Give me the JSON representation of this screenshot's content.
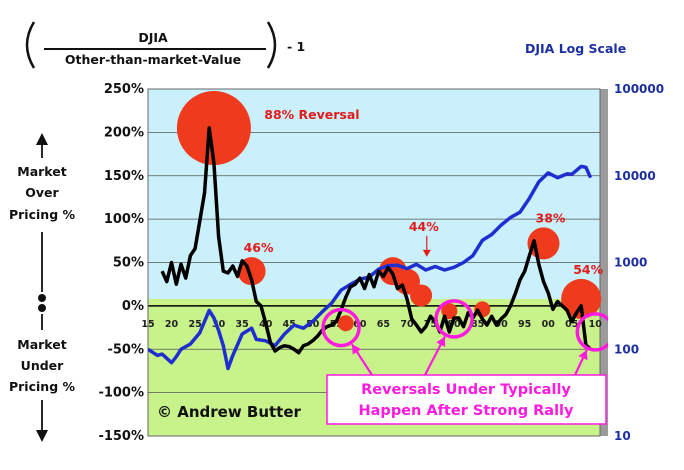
{
  "header": {
    "numerator": "DJIA",
    "denominator": "Other-than-market-Value",
    "suffix": "- 1",
    "right_title": "DJIA Log Scale"
  },
  "side_labels": {
    "over": [
      "Market",
      "Over",
      "Pricing %"
    ],
    "under": [
      "Market",
      "Under",
      "Pricing %"
    ]
  },
  "copyright": "© Andrew Butter",
  "callout": [
    "Reversals Under Typically",
    "Happen After Strong Rally"
  ],
  "colors": {
    "bg_top": "#c9f0fb",
    "bg_bottom": "#c8f28a",
    "ratio_line": "#000000",
    "djia_line": "#1f2ed1",
    "bubble": "#f03a1e",
    "ring": "#ff1adf",
    "right_axis": "#1c2fa0"
  },
  "chart_data": {
    "type": "line",
    "title": "DJIA / Other-than-market-Value - 1 vs DJIA Log Scale",
    "x_range": [
      1915,
      2011
    ],
    "x_ticks": [
      "15",
      "20",
      "25",
      "30",
      "35",
      "40",
      "45",
      "50",
      "55",
      "60",
      "65",
      "70",
      "75",
      "80",
      "85",
      "90",
      "95",
      "00",
      "05",
      "10"
    ],
    "x_tick_values": [
      1915,
      1920,
      1925,
      1930,
      1935,
      1940,
      1945,
      1950,
      1955,
      1960,
      1965,
      1970,
      1975,
      1980,
      1985,
      1990,
      1995,
      2000,
      2005,
      2010
    ],
    "y_left": {
      "label": "Market Over/Under Pricing %",
      "range": [
        -150,
        250
      ],
      "ticks": [
        "250%",
        "200%",
        "150%",
        "100%",
        "50%",
        "0%",
        "-50%",
        "-100%",
        "-150%"
      ],
      "tick_values": [
        250,
        200,
        150,
        100,
        50,
        0,
        -50,
        -100,
        -150
      ]
    },
    "y_right": {
      "label": "DJIA Log Scale",
      "scale": "log",
      "range": [
        10,
        100000
      ],
      "ticks": [
        "100000",
        "10000",
        "1000",
        "100",
        "10"
      ],
      "tick_values": [
        100000,
        10000,
        1000,
        100,
        10
      ]
    },
    "series": [
      {
        "name": "DJIA / Other-than-market-Value - 1",
        "axis": "left",
        "color": "#000000",
        "x": [
          1918,
          1919,
          1920,
          1921,
          1922,
          1923,
          1924,
          1925,
          1926,
          1927,
          1928,
          1929,
          1930,
          1931,
          1932,
          1933,
          1934,
          1935,
          1936,
          1937,
          1938,
          1939,
          1940,
          1941,
          1942,
          1943,
          1944,
          1945,
          1946,
          1947,
          1948,
          1949,
          1950,
          1951,
          1952,
          1953,
          1954,
          1955,
          1956,
          1957,
          1958,
          1959,
          1960,
          1961,
          1962,
          1963,
          1964,
          1965,
          1966,
          1967,
          1968,
          1969,
          1970,
          1971,
          1972,
          1973,
          1974,
          1975,
          1976,
          1977,
          1978,
          1979,
          1980,
          1981,
          1982,
          1983,
          1984,
          1985,
          1986,
          1987,
          1988,
          1989,
          1990,
          1991,
          1992,
          1993,
          1994,
          1995,
          1996,
          1997,
          1998,
          1999,
          2000,
          2001,
          2002,
          2003,
          2004,
          2005,
          2006,
          2007,
          2008,
          2009
        ],
        "values": [
          40,
          28,
          50,
          25,
          48,
          32,
          58,
          66,
          98,
          130,
          205,
          165,
          80,
          40,
          38,
          46,
          34,
          52,
          46,
          30,
          5,
          0,
          -20,
          -42,
          -52,
          -48,
          -46,
          -47,
          -50,
          -54,
          -46,
          -44,
          -40,
          -35,
          -28,
          -24,
          -22,
          -18,
          -5,
          10,
          22,
          25,
          32,
          20,
          36,
          22,
          40,
          34,
          44,
          37,
          20,
          24,
          8,
          -15,
          -22,
          -30,
          -24,
          -12,
          -18,
          -30,
          -12,
          -30,
          -14,
          -14,
          -24,
          -8,
          -14,
          -5,
          -15,
          -22,
          -12,
          -22,
          -15,
          -10,
          0,
          14,
          30,
          40,
          58,
          75,
          48,
          28,
          15,
          -4,
          5,
          0,
          -5,
          -18,
          -8,
          0,
          -45,
          -50
        ]
      },
      {
        "name": "DJIA (log scale)",
        "axis": "right",
        "color": "#1f2ed1",
        "x": [
          1915,
          1917,
          1918,
          1920,
          1921,
          1922,
          1924,
          1926,
          1928,
          1929,
          1930,
          1931,
          1932,
          1933,
          1935,
          1937,
          1938,
          1940,
          1942,
          1944,
          1946,
          1948,
          1950,
          1952,
          1954,
          1956,
          1958,
          1960,
          1962,
          1964,
          1966,
          1968,
          1970,
          1972,
          1974,
          1976,
          1978,
          1980,
          1982,
          1984,
          1986,
          1988,
          1990,
          1992,
          1994,
          1996,
          1998,
          2000,
          2002,
          2004,
          2005,
          2007,
          2008,
          2009
        ],
        "values": [
          100,
          85,
          88,
          70,
          82,
          100,
          115,
          155,
          280,
          230,
          165,
          110,
          60,
          85,
          150,
          175,
          130,
          125,
          110,
          150,
          190,
          175,
          210,
          270,
          340,
          480,
          560,
          640,
          680,
          840,
          920,
          930,
          850,
          950,
          820,
          900,
          820,
          880,
          1000,
          1200,
          1800,
          2100,
          2700,
          3300,
          3800,
          5500,
          8500,
          10800,
          9500,
          10500,
          10400,
          12800,
          12500,
          9500
        ]
      }
    ],
    "annotations": [
      {
        "type": "bubble",
        "x": 1929,
        "y": 205,
        "r": 37,
        "label": "88% Reversal"
      },
      {
        "type": "bubble",
        "x": 1937,
        "y": 40,
        "r": 14,
        "label": "46%"
      },
      {
        "type": "bubble",
        "x": 1967,
        "y": 40,
        "r": 14,
        "label": ""
      },
      {
        "type": "bubble",
        "x": 1970,
        "y": 28,
        "r": 13,
        "label": ""
      },
      {
        "type": "bubble",
        "x": 1973,
        "y": 12,
        "r": 11,
        "label": ""
      },
      {
        "type": "bubble",
        "x": 1999,
        "y": 72,
        "r": 16,
        "label": "38%"
      },
      {
        "type": "bubble",
        "x": 2007,
        "y": 8,
        "r": 20,
        "label": "54%"
      },
      {
        "type": "bubble",
        "x": 1957,
        "y": -20,
        "r": 8,
        "label": ""
      },
      {
        "type": "bubble",
        "x": 1979,
        "y": -6,
        "r": 8,
        "label": ""
      },
      {
        "type": "bubble",
        "x": 1986,
        "y": -4,
        "r": 8,
        "label": ""
      },
      {
        "type": "ring",
        "x": 1956,
        "y": -25,
        "r": 18
      },
      {
        "type": "ring",
        "x": 1980,
        "y": -15,
        "r": 18
      },
      {
        "type": "ring",
        "x": 2010,
        "y": -30,
        "r": 18
      },
      {
        "type": "arrow_label",
        "x": 1974,
        "y": 75,
        "label": "44%"
      }
    ]
  }
}
